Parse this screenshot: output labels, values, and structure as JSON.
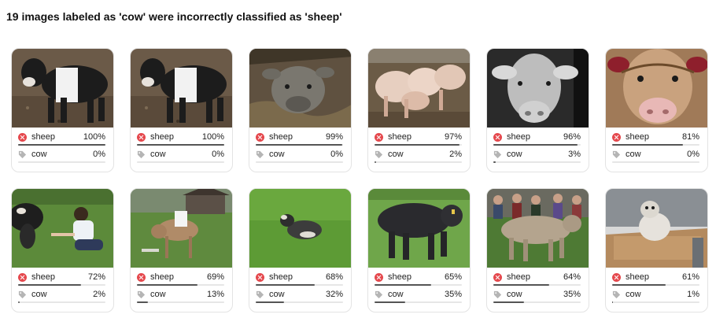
{
  "heading": "19 images labeled as 'cow' were incorrectly classified as 'sheep'",
  "colors": {
    "error": "#e5484d",
    "bar": "#555555",
    "track": "#e6e6e6"
  },
  "icons": {
    "predicted": "x-circle-icon",
    "label": "tag-icon"
  },
  "cards": [
    {
      "image": "belted-calf-photo",
      "predicted": {
        "label": "sheep",
        "pct": "100%",
        "value": 1.0
      },
      "actual": {
        "label": "cow",
        "pct": "0%",
        "value": 0.0
      }
    },
    {
      "image": "belted-calf-photo",
      "predicted": {
        "label": "sheep",
        "pct": "100%",
        "value": 1.0
      },
      "actual": {
        "label": "cow",
        "pct": "0%",
        "value": 0.0
      }
    },
    {
      "image": "calf-in-hay-photo",
      "predicted": {
        "label": "sheep",
        "pct": "99%",
        "value": 0.99
      },
      "actual": {
        "label": "cow",
        "pct": "0%",
        "value": 0.0
      }
    },
    {
      "image": "pigs-in-pen-photo",
      "predicted": {
        "label": "sheep",
        "pct": "97%",
        "value": 0.97
      },
      "actual": {
        "label": "cow",
        "pct": "2%",
        "value": 0.02
      }
    },
    {
      "image": "bw-cow-face-photo",
      "predicted": {
        "label": "sheep",
        "pct": "96%",
        "value": 0.96
      },
      "actual": {
        "label": "cow",
        "pct": "3%",
        "value": 0.03
      }
    },
    {
      "image": "cow-face-halter-photo",
      "predicted": {
        "label": "sheep",
        "pct": "81%",
        "value": 0.81
      },
      "actual": {
        "label": "cow",
        "pct": "0%",
        "value": 0.0
      }
    },
    {
      "image": "boy-feeding-cow-photo",
      "predicted": {
        "label": "sheep",
        "pct": "72%",
        "value": 0.72
      },
      "actual": {
        "label": "cow",
        "pct": "2%",
        "value": 0.02
      }
    },
    {
      "image": "calf-with-sign-photo",
      "predicted": {
        "label": "sheep",
        "pct": "69%",
        "value": 0.69
      },
      "actual": {
        "label": "cow",
        "pct": "13%",
        "value": 0.13
      }
    },
    {
      "image": "calf-lying-grass-photo",
      "predicted": {
        "label": "sheep",
        "pct": "68%",
        "value": 0.68
      },
      "actual": {
        "label": "cow",
        "pct": "32%",
        "value": 0.32
      }
    },
    {
      "image": "dark-bull-photo",
      "predicted": {
        "label": "sheep",
        "pct": "65%",
        "value": 0.65
      },
      "actual": {
        "label": "cow",
        "pct": "35%",
        "value": 0.35
      }
    },
    {
      "image": "brown-cow-crowd-photo",
      "predicted": {
        "label": "sheep",
        "pct": "64%",
        "value": 0.64
      },
      "actual": {
        "label": "cow",
        "pct": "35%",
        "value": 0.35
      }
    },
    {
      "image": "white-dog-table-photo",
      "predicted": {
        "label": "sheep",
        "pct": "61%",
        "value": 0.61
      },
      "actual": {
        "label": "cow",
        "pct": "1%",
        "value": 0.01
      }
    }
  ]
}
